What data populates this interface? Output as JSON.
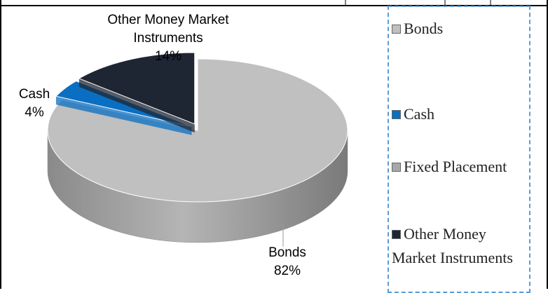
{
  "chart_data": {
    "type": "pie",
    "categories": [
      "Bonds",
      "Cash",
      "Fixed Placement",
      "Other Money Market Instruments"
    ],
    "values": [
      82,
      4,
      0,
      14
    ],
    "value_labels": [
      "82%",
      "4%",
      null,
      "14%"
    ],
    "colors": [
      "#c0c0c0",
      "#0a6fc2",
      "#a8a8a8",
      "#1e2633"
    ],
    "legend": "right"
  }
}
